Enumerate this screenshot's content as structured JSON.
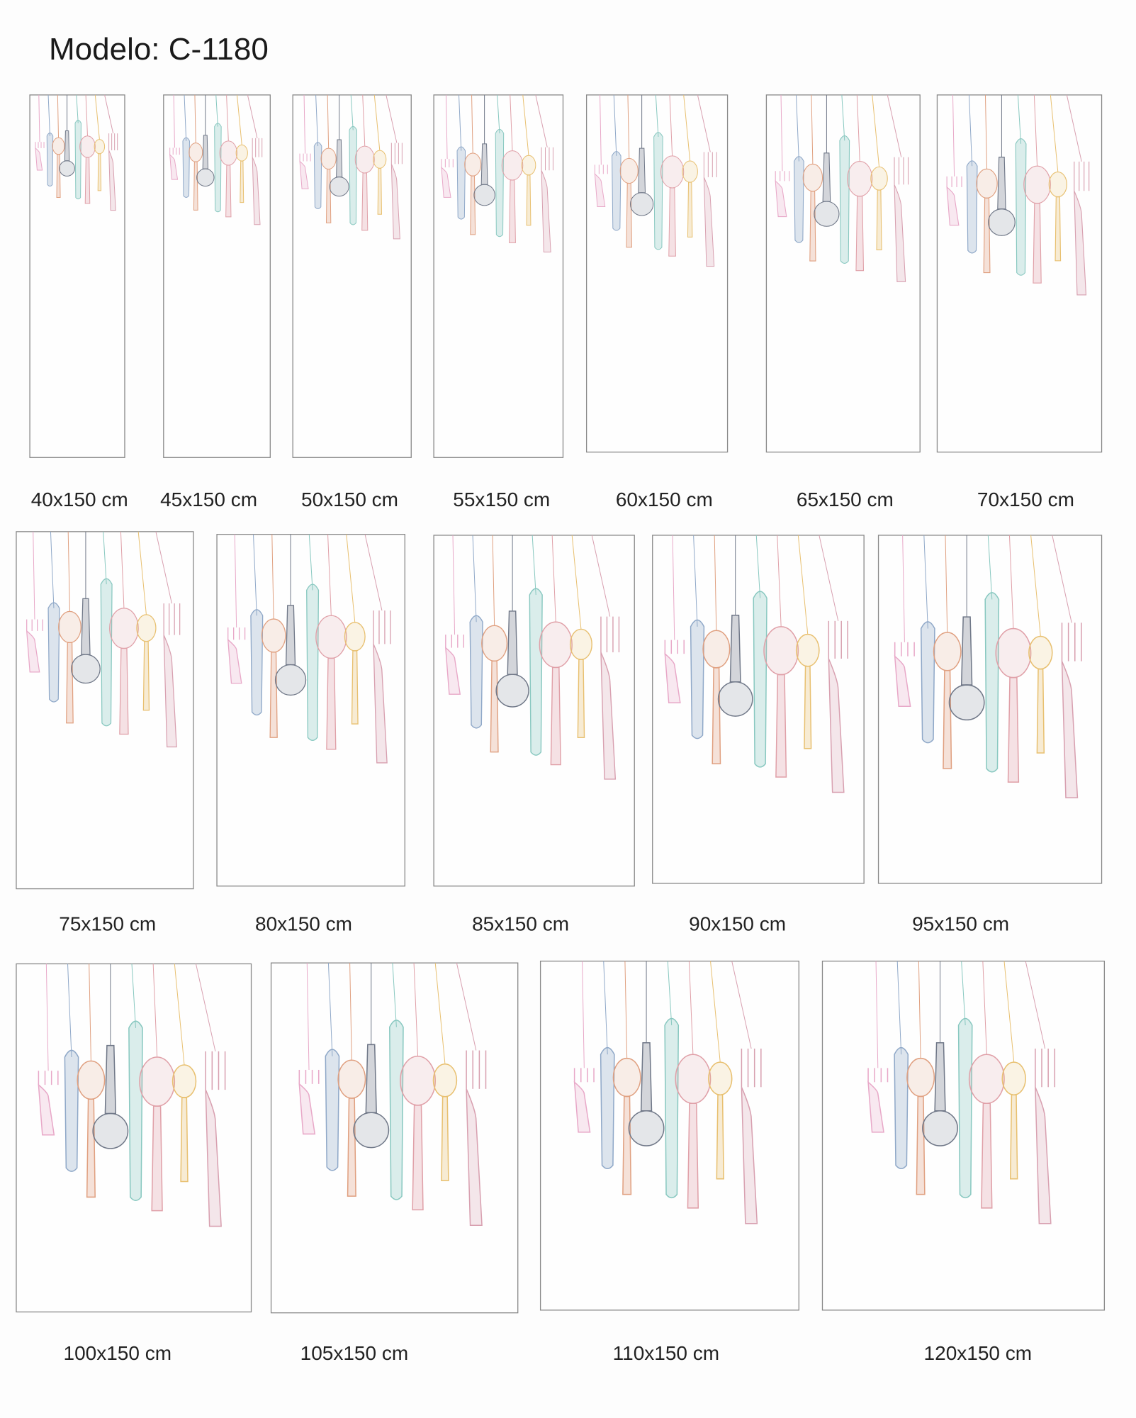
{
  "title": "Modelo: C-1180",
  "panels": [
    {
      "label": "40x150 cm"
    },
    {
      "label": "45x150 cm"
    },
    {
      "label": "50x150 cm"
    },
    {
      "label": "55x150 cm"
    },
    {
      "label": "60x150 cm"
    },
    {
      "label": "65x150 cm"
    },
    {
      "label": "70x150 cm"
    },
    {
      "label": "75x150 cm"
    },
    {
      "label": "80x150 cm"
    },
    {
      "label": "85x150 cm"
    },
    {
      "label": "90x150 cm"
    },
    {
      "label": "95x150 cm"
    },
    {
      "label": "100x150 cm"
    },
    {
      "label": "105x150 cm"
    },
    {
      "label": "110x150 cm"
    },
    {
      "label": "120x150 cm"
    }
  ]
}
